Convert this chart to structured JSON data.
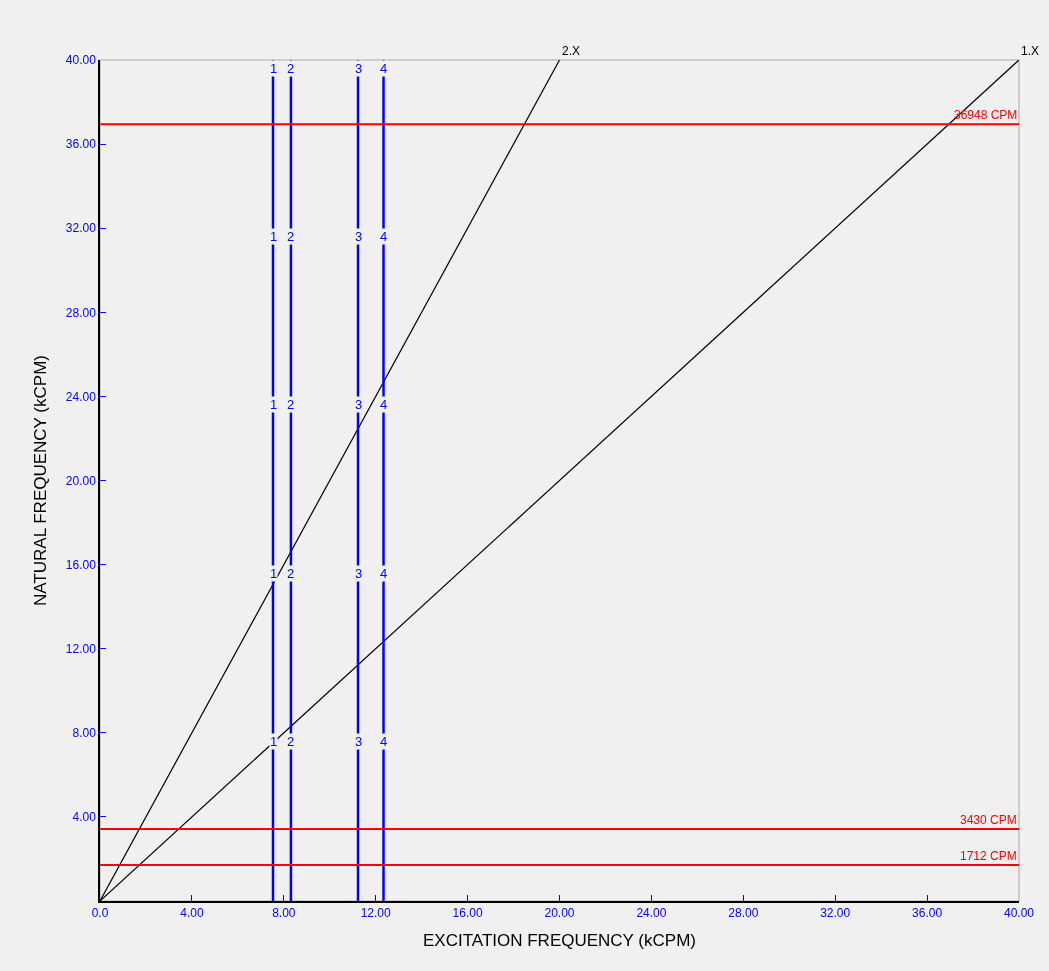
{
  "chart_data": {
    "type": "line",
    "xlabel": "EXCITATION FREQUENCY (kCPM)",
    "ylabel": "NATURAL FREQUENCY (kCPM)",
    "series": [
      {
        "name": "1.X",
        "color": "#000000",
        "x": [
          0,
          40
        ],
        "values": [
          0,
          40
        ]
      },
      {
        "name": "2.X",
        "color": "#000000",
        "x": [
          0,
          20
        ],
        "values": [
          0,
          40
        ]
      },
      {
        "name": "1",
        "color": "#0000ff",
        "x": [
          7.53,
          7.53
        ],
        "values": [
          0,
          40
        ]
      },
      {
        "name": "2",
        "color": "#0000ff",
        "x": [
          8.31,
          8.31
        ],
        "values": [
          0,
          40
        ]
      },
      {
        "name": "3",
        "color": "#0000ff",
        "x": [
          11.23,
          11.23
        ],
        "values": [
          0,
          40
        ]
      },
      {
        "name": "4",
        "color": "#0000ff",
        "x": [
          12.34,
          12.34
        ],
        "values": [
          0,
          40
        ]
      }
    ],
    "xlim": [
      0,
      40
    ],
    "ylim": [
      0,
      40
    ],
    "xticks": [
      {
        "value": 0,
        "label": "0.0"
      },
      {
        "value": 4,
        "label": "4.00"
      },
      {
        "value": 8,
        "label": "8.00"
      },
      {
        "value": 12,
        "label": "12.00"
      },
      {
        "value": 16,
        "label": "16.00"
      },
      {
        "value": 20,
        "label": "20.00"
      },
      {
        "value": 24,
        "label": "24.00"
      },
      {
        "value": 28,
        "label": "28.00"
      },
      {
        "value": 32,
        "label": "32.00"
      },
      {
        "value": 36,
        "label": "36.00"
      },
      {
        "value": 40,
        "label": "40.00"
      }
    ],
    "yticks": [
      {
        "value": 4,
        "label": "4.00"
      },
      {
        "value": 8,
        "label": "8.00"
      },
      {
        "value": 12,
        "label": "12.00"
      },
      {
        "value": 16,
        "label": "16.00"
      },
      {
        "value": 20,
        "label": "20.00"
      },
      {
        "value": 24,
        "label": "24.00"
      },
      {
        "value": 28,
        "label": "28.00"
      },
      {
        "value": 32,
        "label": "32.00"
      },
      {
        "value": 36,
        "label": "36.00"
      },
      {
        "value": 40,
        "label": "40.00"
      }
    ],
    "ref_lines": [
      {
        "axis": "y",
        "value": 36.948,
        "label": "36948 CPM",
        "color": "#ff0000"
      },
      {
        "axis": "y",
        "value": 3.43,
        "label": "3430 CPM",
        "color": "#ff0000"
      },
      {
        "axis": "y",
        "value": 1.712,
        "label": "1712 CPM",
        "color": "#ff0000"
      }
    ],
    "grid": false,
    "legend": false,
    "marker": "none",
    "line_style": "solid"
  }
}
